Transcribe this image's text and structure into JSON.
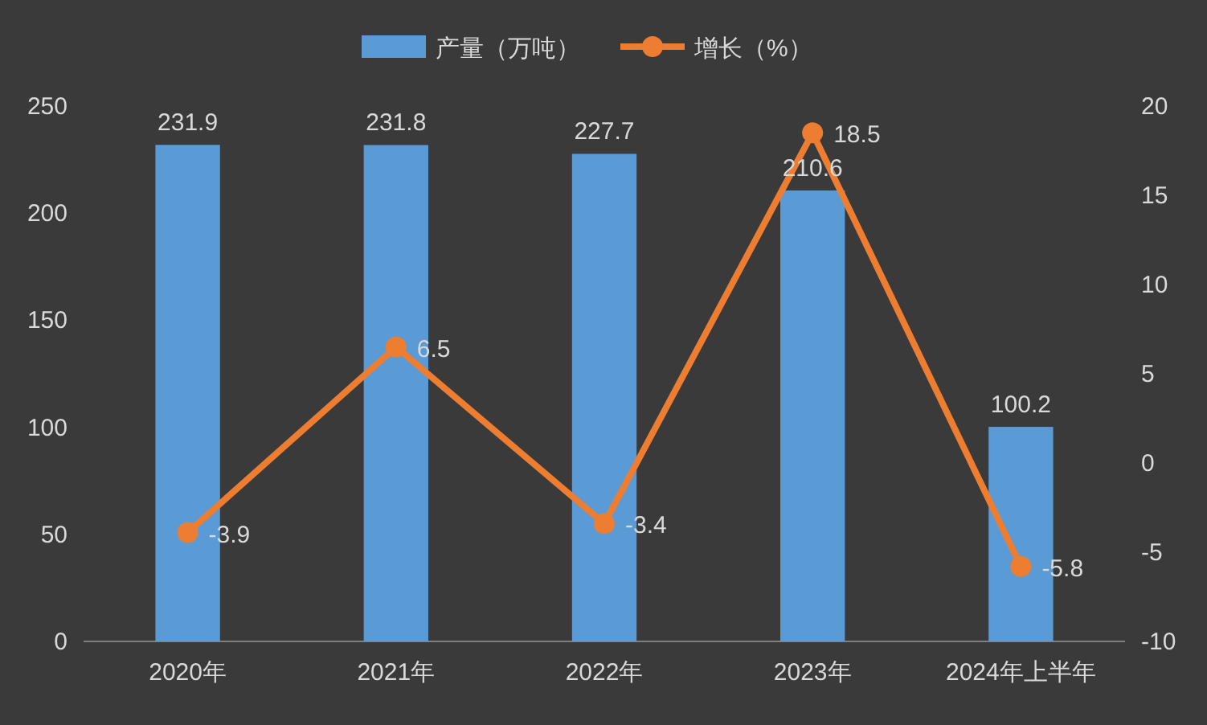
{
  "chart_data": {
    "type": "bar",
    "categories": [
      "2020年",
      "2021年",
      "2022年",
      "2023年",
      "2024年上半年"
    ],
    "series": [
      {
        "name": "产量（万吨）",
        "color": "#5b9bd5",
        "values": [
          231.9,
          231.8,
          227.7,
          210.6,
          100.2
        ]
      },
      {
        "name": "增长（%）",
        "type": "line",
        "axis": "y2",
        "marker": "circle",
        "color": "#ed7d31",
        "values": [
          -3.9,
          6.5,
          -3.4,
          18.5,
          -5.8
        ]
      }
    ],
    "ylim": [
      0,
      250
    ],
    "yticks": [
      0,
      50,
      100,
      150,
      200,
      250
    ],
    "y2lim": [
      -10,
      20
    ],
    "y2ticks": [
      -10,
      -5,
      0,
      5,
      10,
      15,
      20
    ],
    "data_labels": true,
    "legend": "top",
    "grid": false
  }
}
